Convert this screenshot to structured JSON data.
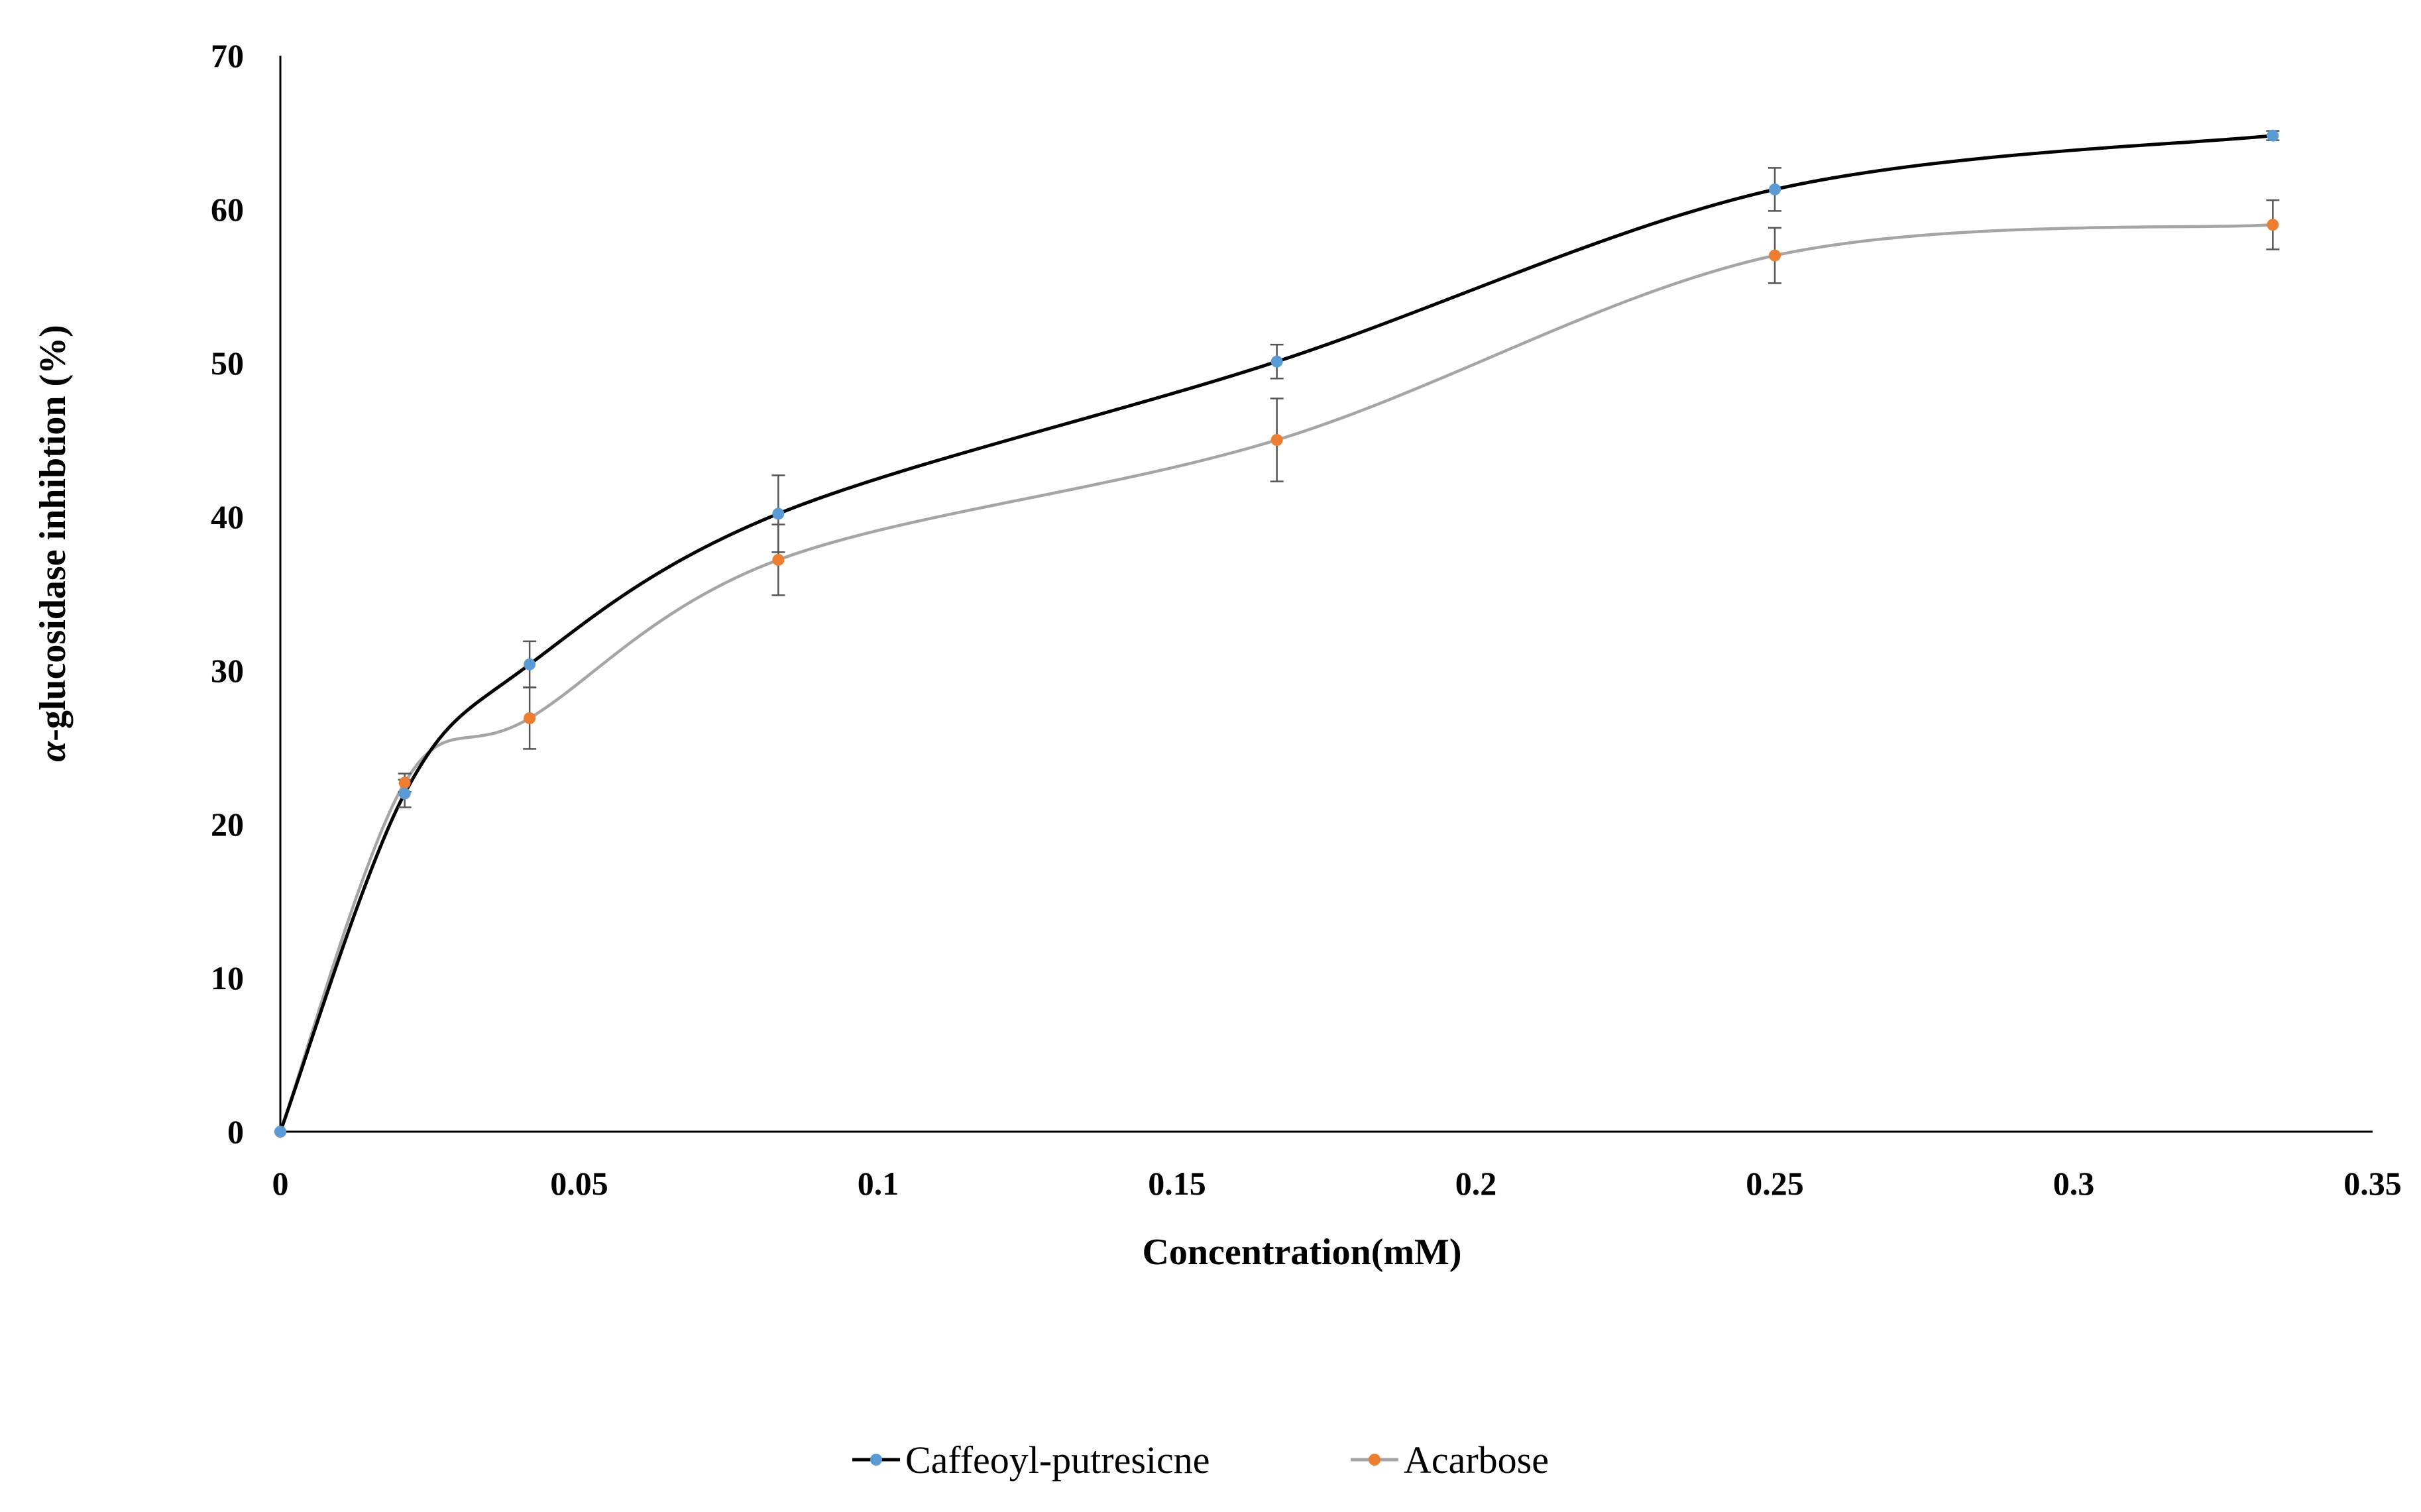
{
  "chart_data": {
    "type": "line",
    "xlabel": "Concentration(mM)",
    "ylabel_prefix": "α",
    "ylabel_rest": "-glucosidase inhibtion (%)",
    "xlim": [
      0,
      0.35
    ],
    "ylim": [
      0,
      70
    ],
    "xticks": [
      0,
      0.05,
      0.1,
      0.15,
      0.2,
      0.25,
      0.3,
      0.35
    ],
    "xtick_labels": [
      "0",
      "0.05",
      "0.1",
      "0.15",
      "0.2",
      "0.25",
      "0.3",
      "0.35"
    ],
    "yticks": [
      0,
      10,
      20,
      30,
      40,
      50,
      60,
      70
    ],
    "ytick_labels": [
      "0",
      "10",
      "20",
      "30",
      "40",
      "50",
      "60",
      "70"
    ],
    "grid": false,
    "legend_position": "bottom-center",
    "series": [
      {
        "name": "Caffeoyl-putresicne",
        "line_color": "#000000",
        "marker_color": "#5b9bd5",
        "x": [
          0,
          0.0208,
          0.0417,
          0.0833,
          0.1667,
          0.25,
          0.3333
        ],
        "y": [
          0,
          22.0,
          30.4,
          40.2,
          50.1,
          61.3,
          64.8
        ],
        "err": [
          0,
          0.9,
          1.5,
          2.5,
          1.1,
          1.4,
          0.3
        ]
      },
      {
        "name": "Acarbose",
        "line_color": "#a5a5a5",
        "marker_color": "#ed7d31",
        "x": [
          0,
          0.0208,
          0.0417,
          0.0833,
          0.1667,
          0.25,
          0.3333
        ],
        "y": [
          0,
          22.7,
          26.9,
          37.2,
          45.0,
          57.0,
          59.0
        ],
        "err": [
          0,
          0.6,
          2.0,
          2.3,
          2.7,
          1.8,
          1.6
        ]
      }
    ]
  }
}
